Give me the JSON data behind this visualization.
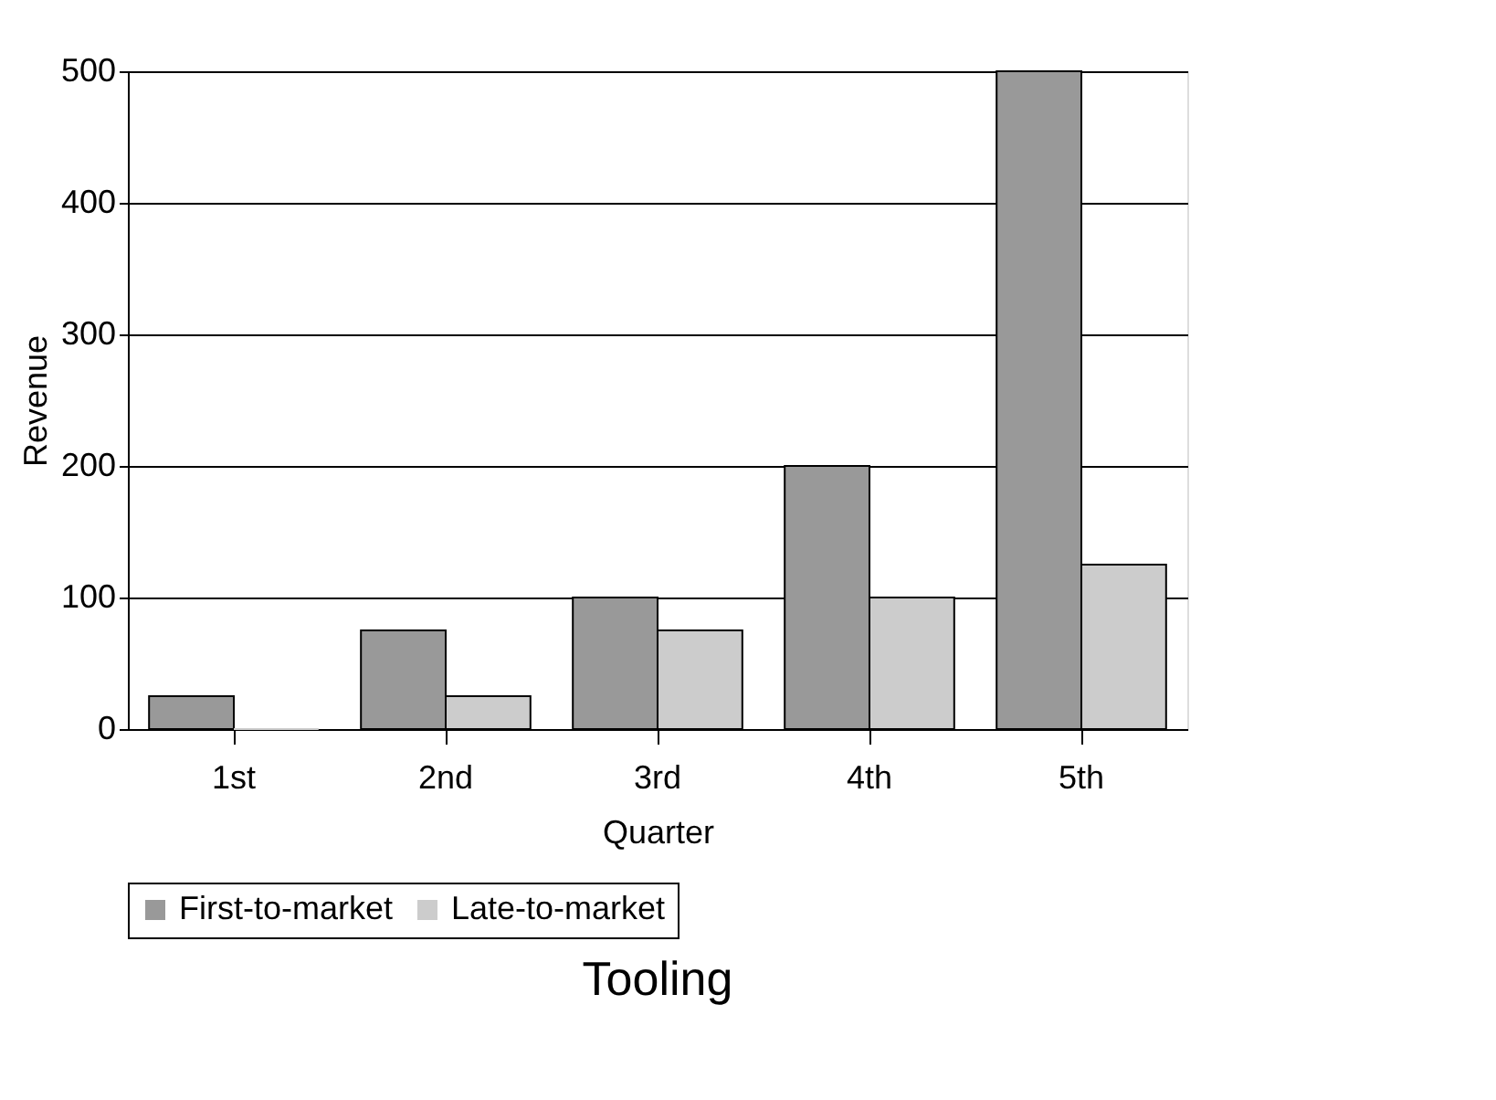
{
  "chart_data": {
    "type": "bar",
    "xlabel": "Quarter",
    "ylabel": "Revenue",
    "categories": [
      "1st",
      "2nd",
      "3rd",
      "4th",
      "5th"
    ],
    "series": [
      {
        "name": "First-to-market",
        "color": "#999999",
        "values": [
          25,
          75,
          100,
          200,
          500
        ]
      },
      {
        "name": "Late-to-market",
        "color": "#cccccc",
        "values": [
          0,
          25,
          75,
          100,
          125
        ]
      }
    ],
    "ylim": [
      0,
      500
    ],
    "yticks": [
      0,
      100,
      200,
      300,
      400,
      500
    ],
    "grid": "y",
    "legend": "bottom",
    "annotations": [
      "Tooling"
    ]
  }
}
